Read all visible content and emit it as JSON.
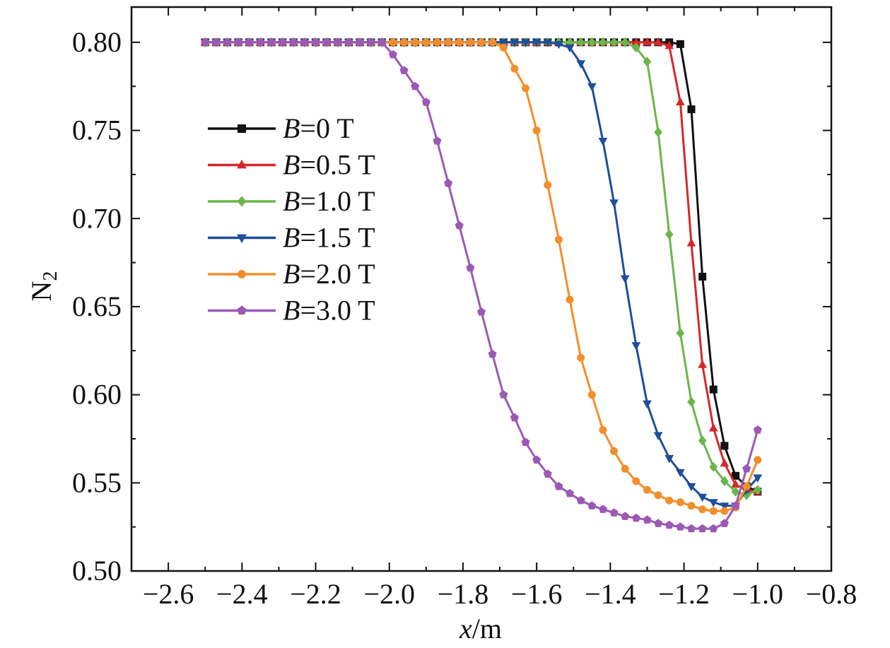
{
  "chart_data": {
    "type": "line",
    "title": "",
    "xlabel": {
      "var": "x",
      "unit": "/m"
    },
    "ylabel": {
      "base": "N",
      "sub": "2"
    },
    "xlim": [
      -2.7,
      -0.8
    ],
    "ylim": [
      0.5,
      0.82
    ],
    "xticks": [
      -2.6,
      -2.4,
      -2.2,
      -2.0,
      -1.8,
      -1.6,
      -1.4,
      -1.2,
      -1.0,
      -0.8
    ],
    "xtick_labels": [
      "−2.6",
      "−2.4",
      "−2.2",
      "−2.0",
      "−1.8",
      "−1.6",
      "−1.4",
      "−1.2",
      "−1.0",
      "−0.8"
    ],
    "yticks": [
      0.5,
      0.55,
      0.6,
      0.65,
      0.7,
      0.75,
      0.8
    ],
    "ytick_labels": [
      "0.50",
      "0.55",
      "0.60",
      "0.65",
      "0.70",
      "0.75",
      "0.80"
    ],
    "grid": false,
    "legend_position": "upper-left",
    "x_step": 0.03,
    "x_start": -2.5,
    "series": [
      {
        "name_var": "B",
        "name_value": "=0 T",
        "color": "#111111",
        "marker": "square",
        "x": [
          -2.5,
          -2.47,
          -2.44,
          -2.41,
          -2.38,
          -2.35,
          -2.32,
          -2.29,
          -2.26,
          -2.23,
          -2.2,
          -2.17,
          -2.14,
          -2.11,
          -2.08,
          -2.05,
          -2.02,
          -1.99,
          -1.96,
          -1.93,
          -1.9,
          -1.87,
          -1.84,
          -1.81,
          -1.78,
          -1.75,
          -1.72,
          -1.69,
          -1.66,
          -1.63,
          -1.6,
          -1.57,
          -1.54,
          -1.51,
          -1.48,
          -1.45,
          -1.42,
          -1.39,
          -1.36,
          -1.33,
          -1.3,
          -1.27,
          -1.24,
          -1.21,
          -1.18,
          -1.15,
          -1.12,
          -1.09,
          -1.06,
          -1.03,
          -1.0
        ],
        "y": [
          0.8,
          0.8,
          0.8,
          0.8,
          0.8,
          0.8,
          0.8,
          0.8,
          0.8,
          0.8,
          0.8,
          0.8,
          0.8,
          0.8,
          0.8,
          0.8,
          0.8,
          0.8,
          0.8,
          0.8,
          0.8,
          0.8,
          0.8,
          0.8,
          0.8,
          0.8,
          0.8,
          0.8,
          0.8,
          0.8,
          0.8,
          0.8,
          0.8,
          0.8,
          0.8,
          0.8,
          0.8,
          0.8,
          0.8,
          0.8,
          0.8,
          0.8,
          0.8,
          0.799,
          0.762,
          0.667,
          0.603,
          0.571,
          0.554,
          0.548,
          0.545
        ]
      },
      {
        "name_var": "B",
        "name_value": "=0.5 T",
        "color": "#d62728",
        "marker": "triangle-up",
        "x": [
          -2.5,
          -2.47,
          -2.44,
          -2.41,
          -2.38,
          -2.35,
          -2.32,
          -2.29,
          -2.26,
          -2.23,
          -2.2,
          -2.17,
          -2.14,
          -2.11,
          -2.08,
          -2.05,
          -2.02,
          -1.99,
          -1.96,
          -1.93,
          -1.9,
          -1.87,
          -1.84,
          -1.81,
          -1.78,
          -1.75,
          -1.72,
          -1.69,
          -1.66,
          -1.63,
          -1.6,
          -1.57,
          -1.54,
          -1.51,
          -1.48,
          -1.45,
          -1.42,
          -1.39,
          -1.36,
          -1.33,
          -1.3,
          -1.27,
          -1.24,
          -1.21,
          -1.18,
          -1.15,
          -1.12,
          -1.09,
          -1.06,
          -1.03,
          -1.0
        ],
        "y": [
          0.8,
          0.8,
          0.8,
          0.8,
          0.8,
          0.8,
          0.8,
          0.8,
          0.8,
          0.8,
          0.8,
          0.8,
          0.8,
          0.8,
          0.8,
          0.8,
          0.8,
          0.8,
          0.8,
          0.8,
          0.8,
          0.8,
          0.8,
          0.8,
          0.8,
          0.8,
          0.8,
          0.8,
          0.8,
          0.8,
          0.8,
          0.8,
          0.8,
          0.8,
          0.8,
          0.8,
          0.8,
          0.8,
          0.8,
          0.8,
          0.8,
          0.8,
          0.798,
          0.766,
          0.686,
          0.617,
          0.581,
          0.561,
          0.549,
          0.546,
          0.545
        ]
      },
      {
        "name_var": "B",
        "name_value": "=1.0 T",
        "color": "#6ab64a",
        "marker": "diamond",
        "x": [
          -2.5,
          -2.47,
          -2.44,
          -2.41,
          -2.38,
          -2.35,
          -2.32,
          -2.29,
          -2.26,
          -2.23,
          -2.2,
          -2.17,
          -2.14,
          -2.11,
          -2.08,
          -2.05,
          -2.02,
          -1.99,
          -1.96,
          -1.93,
          -1.9,
          -1.87,
          -1.84,
          -1.81,
          -1.78,
          -1.75,
          -1.72,
          -1.69,
          -1.66,
          -1.63,
          -1.6,
          -1.57,
          -1.54,
          -1.51,
          -1.48,
          -1.45,
          -1.42,
          -1.39,
          -1.36,
          -1.33,
          -1.3,
          -1.27,
          -1.24,
          -1.21,
          -1.18,
          -1.15,
          -1.12,
          -1.09,
          -1.06,
          -1.03,
          -1.0
        ],
        "y": [
          0.8,
          0.8,
          0.8,
          0.8,
          0.8,
          0.8,
          0.8,
          0.8,
          0.8,
          0.8,
          0.8,
          0.8,
          0.8,
          0.8,
          0.8,
          0.8,
          0.8,
          0.8,
          0.8,
          0.8,
          0.8,
          0.8,
          0.8,
          0.8,
          0.8,
          0.8,
          0.8,
          0.8,
          0.8,
          0.8,
          0.8,
          0.8,
          0.8,
          0.8,
          0.8,
          0.8,
          0.8,
          0.8,
          0.8,
          0.797,
          0.789,
          0.749,
          0.691,
          0.635,
          0.596,
          0.574,
          0.559,
          0.551,
          0.545,
          0.543,
          0.546
        ]
      },
      {
        "name_var": "B",
        "name_value": "=1.5 T",
        "color": "#1f4e9a",
        "marker": "triangle-down",
        "x": [
          -2.5,
          -2.47,
          -2.44,
          -2.41,
          -2.38,
          -2.35,
          -2.32,
          -2.29,
          -2.26,
          -2.23,
          -2.2,
          -2.17,
          -2.14,
          -2.11,
          -2.08,
          -2.05,
          -2.02,
          -1.99,
          -1.96,
          -1.93,
          -1.9,
          -1.87,
          -1.84,
          -1.81,
          -1.78,
          -1.75,
          -1.72,
          -1.69,
          -1.66,
          -1.63,
          -1.6,
          -1.57,
          -1.54,
          -1.51,
          -1.48,
          -1.45,
          -1.42,
          -1.39,
          -1.36,
          -1.33,
          -1.3,
          -1.27,
          -1.24,
          -1.21,
          -1.18,
          -1.15,
          -1.12,
          -1.09,
          -1.06,
          -1.03,
          -1.0
        ],
        "y": [
          0.8,
          0.8,
          0.8,
          0.8,
          0.8,
          0.8,
          0.8,
          0.8,
          0.8,
          0.8,
          0.8,
          0.8,
          0.8,
          0.8,
          0.8,
          0.8,
          0.8,
          0.8,
          0.8,
          0.8,
          0.8,
          0.8,
          0.8,
          0.8,
          0.8,
          0.8,
          0.8,
          0.8,
          0.8,
          0.8,
          0.8,
          0.8,
          0.799,
          0.797,
          0.788,
          0.775,
          0.744,
          0.709,
          0.666,
          0.628,
          0.595,
          0.577,
          0.564,
          0.556,
          0.548,
          0.542,
          0.539,
          0.537,
          0.537,
          0.546,
          0.553
        ]
      },
      {
        "name_var": "B",
        "name_value": "=2.0 T",
        "color": "#f28e2b",
        "marker": "circle",
        "x": [
          -2.5,
          -2.47,
          -2.44,
          -2.41,
          -2.38,
          -2.35,
          -2.32,
          -2.29,
          -2.26,
          -2.23,
          -2.2,
          -2.17,
          -2.14,
          -2.11,
          -2.08,
          -2.05,
          -2.02,
          -1.99,
          -1.96,
          -1.93,
          -1.9,
          -1.87,
          -1.84,
          -1.81,
          -1.78,
          -1.75,
          -1.72,
          -1.69,
          -1.66,
          -1.63,
          -1.6,
          -1.57,
          -1.54,
          -1.51,
          -1.48,
          -1.45,
          -1.42,
          -1.39,
          -1.36,
          -1.33,
          -1.3,
          -1.27,
          -1.24,
          -1.21,
          -1.18,
          -1.15,
          -1.12,
          -1.09,
          -1.06,
          -1.03,
          -1.0
        ],
        "y": [
          0.8,
          0.8,
          0.8,
          0.8,
          0.8,
          0.8,
          0.8,
          0.8,
          0.8,
          0.8,
          0.8,
          0.8,
          0.8,
          0.8,
          0.8,
          0.8,
          0.8,
          0.8,
          0.8,
          0.8,
          0.8,
          0.8,
          0.8,
          0.8,
          0.8,
          0.8,
          0.8,
          0.797,
          0.785,
          0.774,
          0.75,
          0.719,
          0.688,
          0.654,
          0.621,
          0.6,
          0.58,
          0.568,
          0.558,
          0.551,
          0.546,
          0.543,
          0.54,
          0.539,
          0.537,
          0.535,
          0.534,
          0.534,
          0.536,
          0.548,
          0.563
        ]
      },
      {
        "name_var": "B",
        "name_value": "=3.0 T",
        "color": "#9b59b6",
        "marker": "pentagon",
        "x": [
          -2.5,
          -2.47,
          -2.44,
          -2.41,
          -2.38,
          -2.35,
          -2.32,
          -2.29,
          -2.26,
          -2.23,
          -2.2,
          -2.17,
          -2.14,
          -2.11,
          -2.08,
          -2.05,
          -2.02,
          -1.99,
          -1.96,
          -1.93,
          -1.9,
          -1.87,
          -1.84,
          -1.81,
          -1.78,
          -1.75,
          -1.72,
          -1.69,
          -1.66,
          -1.63,
          -1.6,
          -1.57,
          -1.54,
          -1.51,
          -1.48,
          -1.45,
          -1.42,
          -1.39,
          -1.36,
          -1.33,
          -1.3,
          -1.27,
          -1.24,
          -1.21,
          -1.18,
          -1.15,
          -1.12,
          -1.09,
          -1.06,
          -1.03,
          -1.0
        ],
        "y": [
          0.8,
          0.8,
          0.8,
          0.8,
          0.8,
          0.8,
          0.8,
          0.8,
          0.8,
          0.8,
          0.8,
          0.8,
          0.8,
          0.8,
          0.8,
          0.8,
          0.8,
          0.793,
          0.784,
          0.775,
          0.766,
          0.744,
          0.72,
          0.696,
          0.672,
          0.647,
          0.623,
          0.6,
          0.587,
          0.573,
          0.563,
          0.555,
          0.548,
          0.544,
          0.54,
          0.537,
          0.535,
          0.533,
          0.531,
          0.53,
          0.529,
          0.527,
          0.526,
          0.525,
          0.524,
          0.524,
          0.524,
          0.527,
          0.537,
          0.558,
          0.58
        ]
      }
    ]
  }
}
